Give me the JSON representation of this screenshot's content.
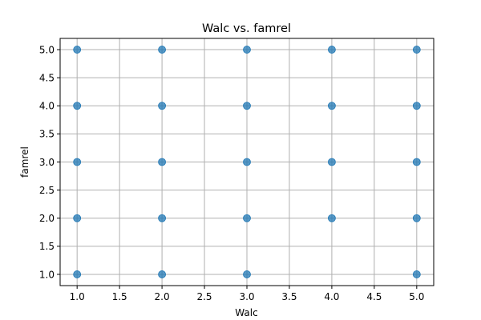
{
  "chart_data": {
    "type": "scatter",
    "title": "Walc vs. famrel",
    "xlabel": "Walc",
    "ylabel": "famrel",
    "xlim": [
      0.8,
      5.2
    ],
    "ylim": [
      0.8,
      5.2
    ],
    "x_ticks": [
      "1.0",
      "1.5",
      "2.0",
      "2.5",
      "3.0",
      "3.5",
      "4.0",
      "4.5",
      "5.0"
    ],
    "y_ticks": [
      "1.0",
      "1.5",
      "2.0",
      "2.5",
      "3.0",
      "3.5",
      "4.0",
      "4.5",
      "5.0"
    ],
    "grid": true,
    "marker_color": "#1f77b4",
    "points": [
      {
        "x": 1,
        "y": 1
      },
      {
        "x": 1,
        "y": 2
      },
      {
        "x": 1,
        "y": 3
      },
      {
        "x": 1,
        "y": 4
      },
      {
        "x": 1,
        "y": 5
      },
      {
        "x": 2,
        "y": 1
      },
      {
        "x": 2,
        "y": 2
      },
      {
        "x": 2,
        "y": 3
      },
      {
        "x": 2,
        "y": 4
      },
      {
        "x": 2,
        "y": 5
      },
      {
        "x": 3,
        "y": 1
      },
      {
        "x": 3,
        "y": 2
      },
      {
        "x": 3,
        "y": 3
      },
      {
        "x": 3,
        "y": 4
      },
      {
        "x": 3,
        "y": 5
      },
      {
        "x": 4,
        "y": 2
      },
      {
        "x": 4,
        "y": 3
      },
      {
        "x": 4,
        "y": 4
      },
      {
        "x": 4,
        "y": 5
      },
      {
        "x": 5,
        "y": 1
      },
      {
        "x": 5,
        "y": 2
      },
      {
        "x": 5,
        "y": 3
      },
      {
        "x": 5,
        "y": 4
      },
      {
        "x": 5,
        "y": 5
      }
    ]
  }
}
